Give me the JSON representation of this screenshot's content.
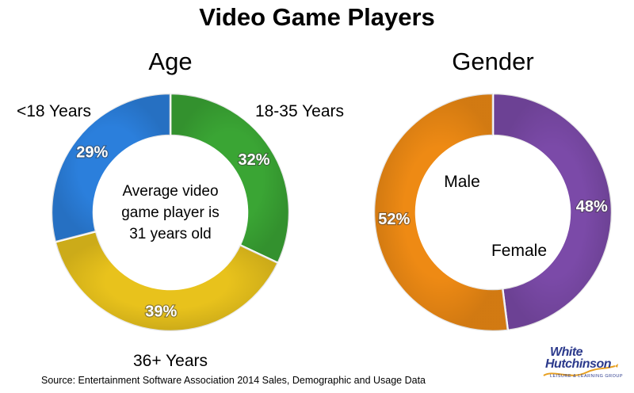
{
  "title": "Video Game Players",
  "chart_data": [
    {
      "type": "pie",
      "subtitle": "Age",
      "center_text": [
        "Average video",
        "game player is",
        "31 years old"
      ],
      "slices": [
        {
          "label": "18-35 Years",
          "value": 32,
          "pct_label": "32%",
          "color": "#3aa534"
        },
        {
          "label": "36+ Years",
          "value": 39,
          "pct_label": "39%",
          "color": "#e8c21c"
        },
        {
          "label": "<18 Years",
          "value": 29,
          "pct_label": "29%",
          "color": "#2b7fdc"
        }
      ]
    },
    {
      "type": "pie",
      "subtitle": "Gender",
      "center_text": [],
      "slices": [
        {
          "label": "Female",
          "value": 48,
          "pct_label": "48%",
          "color": "#7b4aa8"
        },
        {
          "label": "Male",
          "value": 52,
          "pct_label": "52%",
          "color": "#ee8a14"
        }
      ]
    }
  ],
  "source": "Source: Entertainment Software Association 2014 Sales, Demographic and Usage Data",
  "logo": {
    "line1": "White",
    "line2": "Hutchinson",
    "tagline": "LEISURE & LEARNING GROUP"
  }
}
